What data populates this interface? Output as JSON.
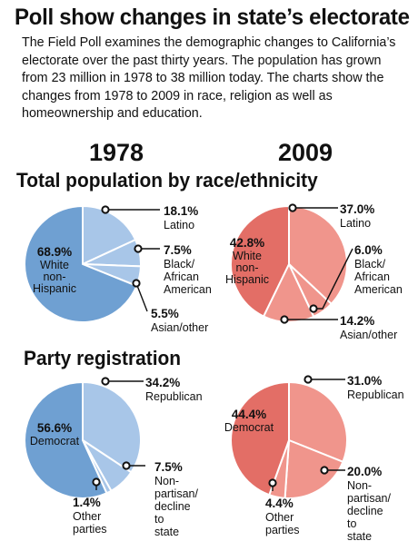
{
  "headline": "Poll show changes in state’s electorate",
  "intro": "The Field Poll examines the demographic changes to California’s electorate over the past thirty years. The population has grown from 23 million in 1978 to 38 million today. The charts show the changes from 1978 to 2009  in race, religion as well as homeownership and education.",
  "years": [
    "1978",
    "2009"
  ],
  "sections": [
    "Total population by race/ethnicity",
    "Party registration"
  ],
  "colors": {
    "blue_main": "#6fa0d2",
    "blue_light": "#a8c6e8",
    "red_main": "#e36e66",
    "red_light": "#f0958c"
  },
  "chart_data": [
    {
      "type": "pie",
      "group": "Total population by race/ethnicity",
      "year": "1978",
      "slices": [
        {
          "label": "Latino",
          "value": 18.1,
          "pct": "18.1%",
          "color": "#a8c6e8"
        },
        {
          "label": "Black/ African American",
          "value": 7.5,
          "pct": "7.5%",
          "color": "#a8c6e8"
        },
        {
          "label": "Asian/other",
          "value": 5.5,
          "pct": "5.5%",
          "color": "#a8c6e8"
        },
        {
          "label": "White non- Hispanic",
          "value": 68.9,
          "pct": "68.9%",
          "color": "#6fa0d2"
        }
      ]
    },
    {
      "type": "pie",
      "group": "Total population by race/ethnicity",
      "year": "2009",
      "slices": [
        {
          "label": "Latino",
          "value": 37.0,
          "pct": "37.0%",
          "color": "#f0958c"
        },
        {
          "label": "Black/ African American",
          "value": 6.0,
          "pct": "6.0%",
          "color": "#f0958c"
        },
        {
          "label": "Asian/other",
          "value": 14.2,
          "pct": "14.2%",
          "color": "#f0958c"
        },
        {
          "label": "White non- Hispanic",
          "value": 42.8,
          "pct": "42.8%",
          "color": "#e36e66"
        }
      ]
    },
    {
      "type": "pie",
      "group": "Party registration",
      "year": "1978",
      "slices": [
        {
          "label": "Republican",
          "value": 34.2,
          "pct": "34.2%",
          "color": "#a8c6e8"
        },
        {
          "label": "Non- partisan/ decline to state",
          "value": 7.5,
          "pct": "7.5%",
          "color": "#a8c6e8"
        },
        {
          "label": "Other parties",
          "value": 1.4,
          "pct": "1.4%",
          "color": "#a8c6e8"
        },
        {
          "label": "Democrat",
          "value": 56.6,
          "pct": "56.6%",
          "color": "#6fa0d2"
        }
      ]
    },
    {
      "type": "pie",
      "group": "Party registration",
      "year": "2009",
      "slices": [
        {
          "label": "Republican",
          "value": 31.0,
          "pct": "31.0%",
          "color": "#f0958c"
        },
        {
          "label": "Non- partisan/ decline to state",
          "value": 20.0,
          "pct": "20.0%",
          "color": "#f0958c"
        },
        {
          "label": "Other parties",
          "value": 4.4,
          "pct": "4.4%",
          "color": "#f0958c"
        },
        {
          "label": "Democrat",
          "value": 44.4,
          "pct": "44.4%",
          "color": "#e36e66"
        }
      ]
    }
  ]
}
